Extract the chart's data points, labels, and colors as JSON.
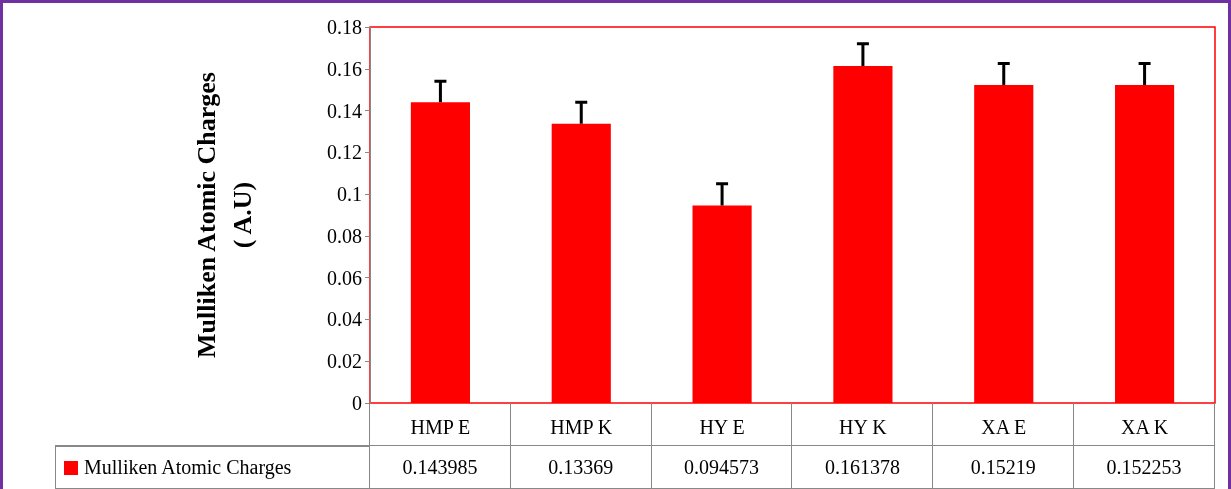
{
  "chart_data": {
    "type": "bar",
    "ylabel": "Mulliken Atomic Charges\n( A.U)",
    "categories": [
      "HMP E",
      "HMP K",
      "HY E",
      "HY K",
      "XA E",
      "XA K"
    ],
    "series": [
      {
        "name": "Mulliken Atomic Charges",
        "color": "#ff0000",
        "values": [
          0.143985,
          0.13369,
          0.094573,
          0.161378,
          0.15219,
          0.152253
        ],
        "errors": [
          [
            0.143985,
            0.154
          ],
          [
            0.13369,
            0.144
          ],
          [
            0.094573,
            0.105
          ],
          [
            0.161378,
            0.172
          ],
          [
            0.15219,
            0.1625
          ],
          [
            0.152253,
            0.1625
          ]
        ]
      }
    ],
    "ylim": [
      0,
      0.18
    ],
    "yticks": [
      0,
      0.02,
      0.04,
      0.06,
      0.08,
      0.1,
      0.12,
      0.14,
      0.16,
      0.18
    ],
    "grid": false,
    "legend": "bottom left",
    "data_labels": true
  }
}
